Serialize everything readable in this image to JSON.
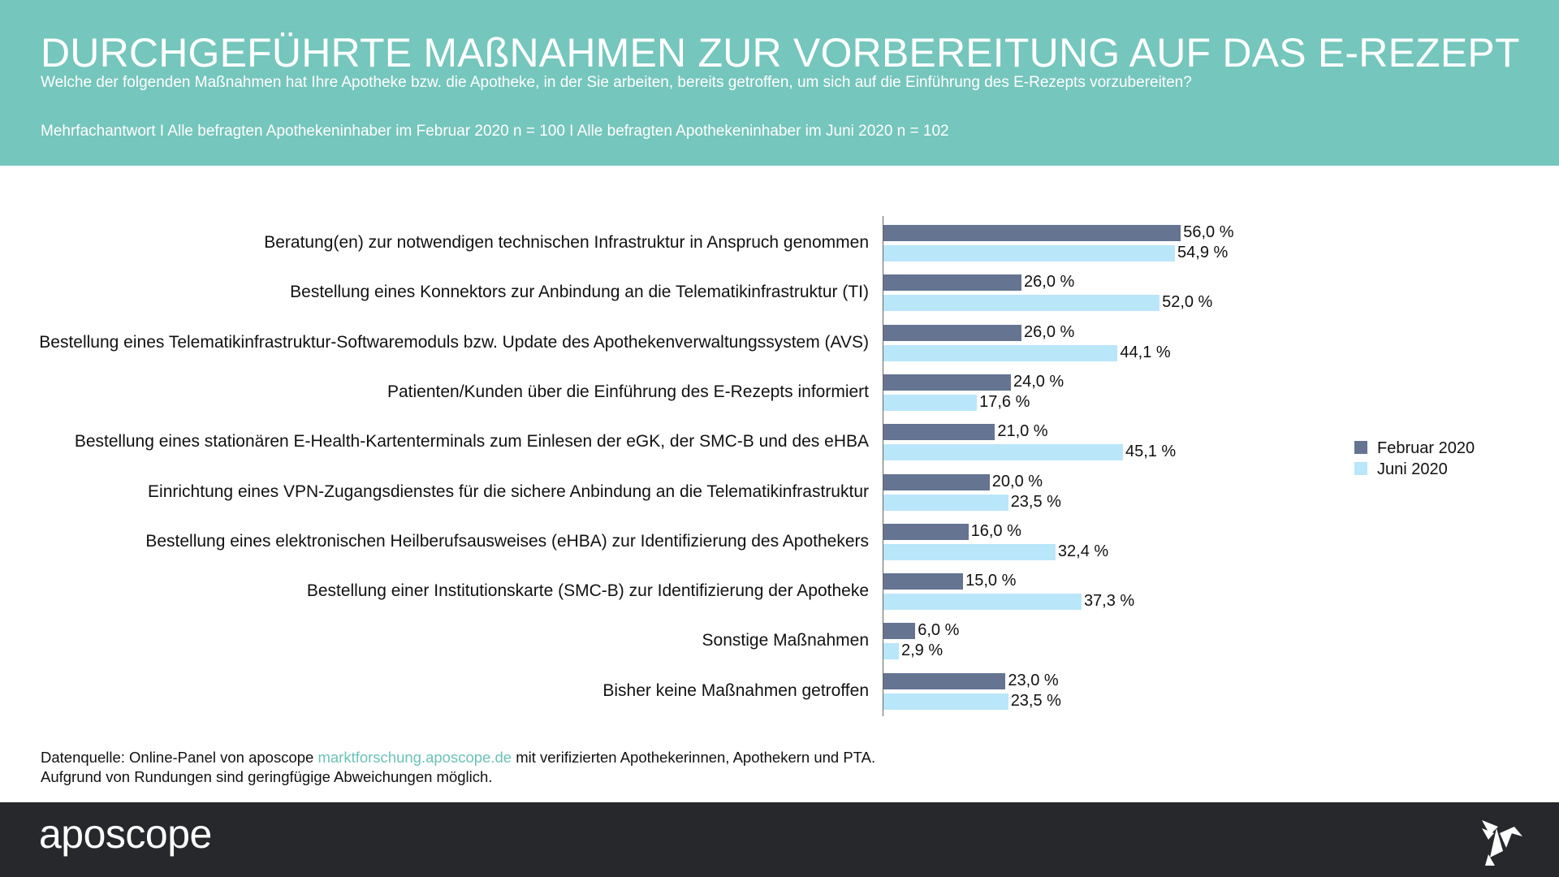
{
  "header": {
    "title": "DURCHGEFÜHRTE MAßNAHMEN ZUR VORBEREITUNG AUF DAS E-REZEPT",
    "subtitle": "Welche der folgenden Maßnahmen hat Ihre Apotheke bzw. die Apotheke, in der Sie arbeiten, bereits getroffen, um sich auf die Einführung des E-Rezepts vorzubereiten?",
    "note": "Mehrfachantwort I Alle befragten Apothekeninhaber im Februar 2020 n = 100 I Alle befragten Apothekeninhaber im Juni 2020 n = 102"
  },
  "colors": {
    "header_bg": "#75c6bc",
    "feb": "#647491",
    "jun": "#b9e6f9",
    "footer_bg": "#27282c",
    "link": "#6cc2b7"
  },
  "chart_data": {
    "type": "bar",
    "orientation": "horizontal",
    "categories": [
      "Beratung(en) zur notwendigen technischen Infrastruktur in Anspruch genommen",
      "Bestellung eines Konnektors zur Anbindung an die Telematikinfrastruktur (TI)",
      "Bestellung eines Telematikinfrastruktur-Softwaremoduls bzw. Update des Apothekenverwaltungssystem (AVS)",
      "Patienten/Kunden über die Einführung des E-Rezepts informiert",
      "Bestellung eines stationären E-Health-Kartenterminals zum Einlesen der eGK, der SMC-B und des eHBA",
      "Einrichtung eines VPN-Zugangsdienstes für die sichere Anbindung an die Telematikinfrastruktur",
      "Bestellung eines elektronischen Heilberufsausweises (eHBA) zur Identifizierung des Apothekers",
      "Bestellung einer Institutionskarte (SMC-B) zur Identifizierung der Apotheke",
      "Sonstige Maßnahmen",
      "Bisher keine Maßnahmen getroffen"
    ],
    "series": [
      {
        "name": "Februar 2020",
        "values": [
          56.0,
          26.0,
          26.0,
          24.0,
          21.0,
          20.0,
          16.0,
          15.0,
          6.0,
          23.0
        ],
        "labels": [
          "56,0 %",
          "26,0 %",
          "26,0 %",
          "24,0 %",
          "21,0 %",
          "20,0 %",
          "16,0 %",
          "15,0 %",
          "6,0 %",
          "23,0 %"
        ]
      },
      {
        "name": "Juni 2020",
        "values": [
          54.9,
          52.0,
          44.1,
          17.6,
          45.1,
          23.5,
          32.4,
          37.3,
          2.9,
          23.5
        ],
        "labels": [
          "54,9 %",
          "52,0 %",
          "44,1 %",
          "17,6 %",
          "45,1 %",
          "23,5 %",
          "32,4 %",
          "37,3 %",
          "2,9 %",
          "23,5 %"
        ]
      }
    ],
    "unit": "%",
    "legend": "right",
    "grid": false
  },
  "source": {
    "prefix": "Datenquelle: Online-Panel von aposcope ",
    "link": "marktforschung.aposcope.de",
    "suffix": " mit verifizierten Apothekerinnen, Apothekern und PTA.",
    "line2": "Aufgrund von Rundungen sind geringfügige Abweichungen möglich."
  },
  "footer": {
    "logo": "aposcope",
    "icon": "origami-bird-icon"
  }
}
